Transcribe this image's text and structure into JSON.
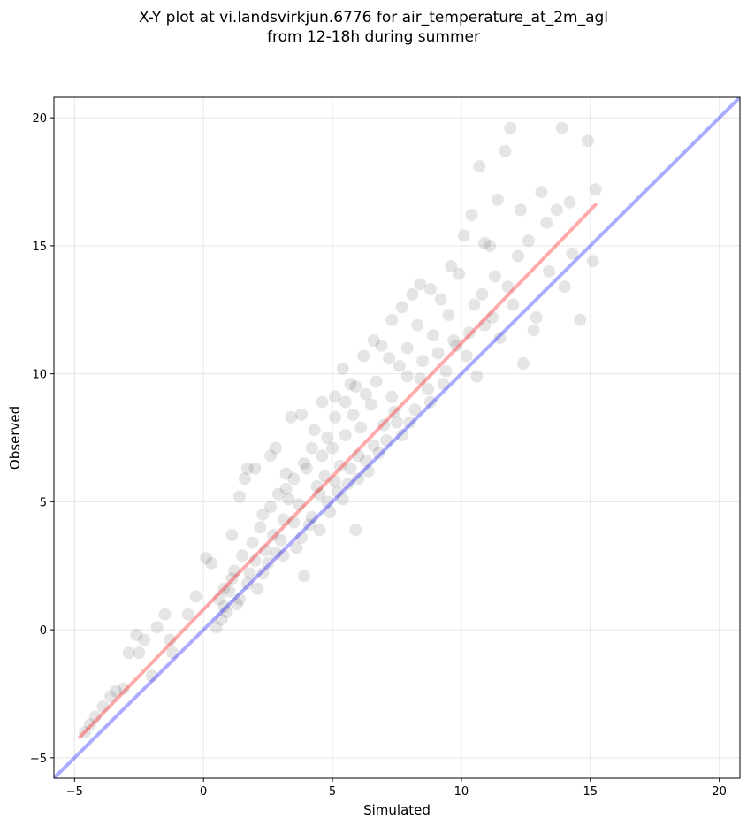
{
  "chart_data": {
    "type": "scatter",
    "title": "X-Y plot at vi.landsvirkjun.6776 for air_temperature_at_2m_agl",
    "subtitle": "from 12-18h during summer",
    "xlabel": "Simulated",
    "ylabel": "Observed",
    "xlim": [
      -5.8,
      20.8
    ],
    "ylim": [
      -5.8,
      20.8
    ],
    "xticks": [
      -5,
      0,
      5,
      10,
      15,
      20
    ],
    "yticks": [
      -5,
      0,
      5,
      10,
      15,
      20
    ],
    "xtick_labels": [
      "−5",
      "0",
      "5",
      "10",
      "15",
      "20"
    ],
    "ytick_labels": [
      "−5",
      "0",
      "5",
      "10",
      "15",
      "20"
    ],
    "grid": true,
    "point_color": "#000000",
    "point_opacity": 0.1,
    "identity_line": {
      "color": "#0000ff",
      "opacity": 0.33,
      "x": [
        -5.8,
        20.8
      ],
      "y": [
        -5.8,
        20.8
      ]
    },
    "fit_line": {
      "color": "#ff0000",
      "opacity": 0.33,
      "x": [
        -4.8,
        15.2
      ],
      "y": [
        -4.2,
        16.6
      ]
    },
    "points": [
      [
        -4.6,
        -4.0
      ],
      [
        -4.4,
        -3.7
      ],
      [
        -4.2,
        -3.4
      ],
      [
        -3.9,
        -3.0
      ],
      [
        -3.6,
        -2.6
      ],
      [
        -3.4,
        -2.4
      ],
      [
        -3.1,
        -2.3
      ],
      [
        -2.9,
        -0.9
      ],
      [
        -2.6,
        -0.2
      ],
      [
        -2.5,
        -0.9
      ],
      [
        -2.3,
        -0.4
      ],
      [
        -2.0,
        -1.8
      ],
      [
        -1.8,
        0.1
      ],
      [
        -1.5,
        0.6
      ],
      [
        -1.3,
        -0.4
      ],
      [
        -1.2,
        -0.9
      ],
      [
        -0.6,
        0.6
      ],
      [
        -0.3,
        1.3
      ],
      [
        0.1,
        2.8
      ],
      [
        0.3,
        2.6
      ],
      [
        0.5,
        0.1
      ],
      [
        0.8,
        1.6
      ],
      [
        1.1,
        3.7
      ],
      [
        1.4,
        5.2
      ],
      [
        1.6,
        5.9
      ],
      [
        1.7,
        6.3
      ],
      [
        2.0,
        6.3
      ],
      [
        2.3,
        4.5
      ],
      [
        2.6,
        6.8
      ],
      [
        2.8,
        7.1
      ],
      [
        3.2,
        5.5
      ],
      [
        3.4,
        8.3
      ],
      [
        3.8,
        8.4
      ],
      [
        3.9,
        2.1
      ],
      [
        4.3,
        7.8
      ],
      [
        4.6,
        8.9
      ],
      [
        5.1,
        9.1
      ],
      [
        5.4,
        10.2
      ],
      [
        5.7,
        9.6
      ],
      [
        5.9,
        3.9
      ],
      [
        6.2,
        10.7
      ],
      [
        6.6,
        11.3
      ],
      [
        6.9,
        11.1
      ],
      [
        7.3,
        12.1
      ],
      [
        7.7,
        12.6
      ],
      [
        8.1,
        13.1
      ],
      [
        8.4,
        13.5
      ],
      [
        8.8,
        13.3
      ],
      [
        9.2,
        12.9
      ],
      [
        9.6,
        14.2
      ],
      [
        9.9,
        13.9
      ],
      [
        10.1,
        15.4
      ],
      [
        10.4,
        16.2
      ],
      [
        10.7,
        18.1
      ],
      [
        10.9,
        15.1
      ],
      [
        11.1,
        15.0
      ],
      [
        11.4,
        16.8
      ],
      [
        11.7,
        18.7
      ],
      [
        11.9,
        19.6
      ],
      [
        12.3,
        16.4
      ],
      [
        12.4,
        10.4
      ],
      [
        12.8,
        11.7
      ],
      [
        13.1,
        17.1
      ],
      [
        13.4,
        14.0
      ],
      [
        13.9,
        19.6
      ],
      [
        14.2,
        16.7
      ],
      [
        14.6,
        12.1
      ],
      [
        14.9,
        19.1
      ],
      [
        15.1,
        14.4
      ],
      [
        15.2,
        17.2
      ],
      [
        9.8,
        11.1
      ],
      [
        10.6,
        9.9
      ],
      [
        11.2,
        12.2
      ],
      [
        10.3,
        11.6
      ],
      [
        9.4,
        10.1
      ],
      [
        8.7,
        9.4
      ],
      [
        8.2,
        8.6
      ],
      [
        7.9,
        9.9
      ],
      [
        7.5,
        8.1
      ],
      [
        7.1,
        7.4
      ],
      [
        6.8,
        6.9
      ],
      [
        6.4,
        6.2
      ],
      [
        6.0,
        6.8
      ],
      [
        5.6,
        5.7
      ],
      [
        5.2,
        5.4
      ],
      [
        4.9,
        4.6
      ],
      [
        4.5,
        3.9
      ],
      [
        4.1,
        4.1
      ],
      [
        3.6,
        3.2
      ],
      [
        3.0,
        3.5
      ],
      [
        2.5,
        2.6
      ],
      [
        2.1,
        1.6
      ],
      [
        1.8,
        2.2
      ],
      [
        1.3,
        1.0
      ],
      [
        0.9,
        0.7
      ],
      [
        0.6,
        1.2
      ],
      [
        7.3,
        9.1
      ],
      [
        7.6,
        10.3
      ],
      [
        6.5,
        8.8
      ],
      [
        6.1,
        7.9
      ],
      [
        5.8,
        8.4
      ],
      [
        5.5,
        7.6
      ],
      [
        5.3,
        6.4
      ],
      [
        5.0,
        7.1
      ],
      [
        4.7,
        6.0
      ],
      [
        4.4,
        5.6
      ],
      [
        4.0,
        6.3
      ],
      [
        3.7,
        4.9
      ],
      [
        3.3,
        5.1
      ],
      [
        3.1,
        4.3
      ],
      [
        2.7,
        3.7
      ],
      [
        2.4,
        3.1
      ],
      [
        8.5,
        10.5
      ],
      [
        8.9,
        11.5
      ],
      [
        9.1,
        10.8
      ],
      [
        9.5,
        12.3
      ],
      [
        8.3,
        11.9
      ],
      [
        7.9,
        11.0
      ],
      [
        7.2,
        10.6
      ],
      [
        6.7,
        9.7
      ],
      [
        6.3,
        9.2
      ],
      [
        5.9,
        9.5
      ],
      [
        5.5,
        8.9
      ],
      [
        5.1,
        8.3
      ],
      [
        4.8,
        7.5
      ],
      [
        4.6,
        6.8
      ],
      [
        4.2,
        7.1
      ],
      [
        3.9,
        6.5
      ],
      [
        3.5,
        5.9
      ],
      [
        3.2,
        6.1
      ],
      [
        2.9,
        5.3
      ],
      [
        2.6,
        4.8
      ],
      [
        2.2,
        4.0
      ],
      [
        1.9,
        3.4
      ],
      [
        1.5,
        2.9
      ],
      [
        1.2,
        2.3
      ],
      [
        1.0,
        1.5
      ],
      [
        0.7,
        0.4
      ],
      [
        10.8,
        13.1
      ],
      [
        11.3,
        13.8
      ],
      [
        11.8,
        13.4
      ],
      [
        12.2,
        14.6
      ],
      [
        12.6,
        15.2
      ],
      [
        13.3,
        15.9
      ],
      [
        13.7,
        16.4
      ],
      [
        14.3,
        14.7
      ],
      [
        14.0,
        13.4
      ],
      [
        12.9,
        12.2
      ],
      [
        12.0,
        12.7
      ],
      [
        11.5,
        11.4
      ],
      [
        10.9,
        11.9
      ],
      [
        10.5,
        12.7
      ],
      [
        10.2,
        10.7
      ],
      [
        9.7,
        11.3
      ],
      [
        9.3,
        9.6
      ],
      [
        8.8,
        8.9
      ],
      [
        8.4,
        9.8
      ],
      [
        8.0,
        8.1
      ],
      [
        7.7,
        7.6
      ],
      [
        7.4,
        8.5
      ],
      [
        7.0,
        8.0
      ],
      [
        6.6,
        7.2
      ],
      [
        6.3,
        6.6
      ],
      [
        6.0,
        5.9
      ],
      [
        5.7,
        6.3
      ],
      [
        5.4,
        5.1
      ],
      [
        5.1,
        5.8
      ],
      [
        4.8,
        5.0
      ],
      [
        4.5,
        5.3
      ],
      [
        4.2,
        4.4
      ],
      [
        3.8,
        3.6
      ],
      [
        3.5,
        4.2
      ],
      [
        3.1,
        2.9
      ],
      [
        2.8,
        3.0
      ],
      [
        2.3,
        2.2
      ],
      [
        2.0,
        2.7
      ],
      [
        1.7,
        1.8
      ],
      [
        1.4,
        1.2
      ],
      [
        1.1,
        2.0
      ],
      [
        0.8,
        0.9
      ]
    ]
  }
}
